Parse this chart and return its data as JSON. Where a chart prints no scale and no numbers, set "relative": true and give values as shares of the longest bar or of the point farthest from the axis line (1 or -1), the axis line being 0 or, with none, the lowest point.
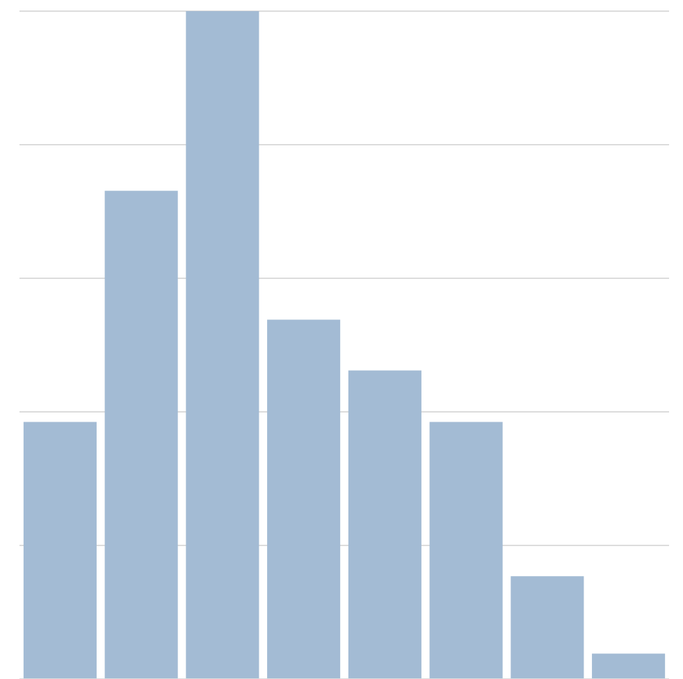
{
  "chart_data": {
    "type": "bar",
    "relative": true,
    "grid": "y",
    "tick_labels": false,
    "categories": [
      null,
      null,
      null,
      null,
      null,
      null,
      null,
      null
    ],
    "values": [
      0.385,
      0.731,
      1,
      0.538,
      0.462,
      0.385,
      0.154,
      0.038
    ],
    "color": "#a3bbd4"
  }
}
